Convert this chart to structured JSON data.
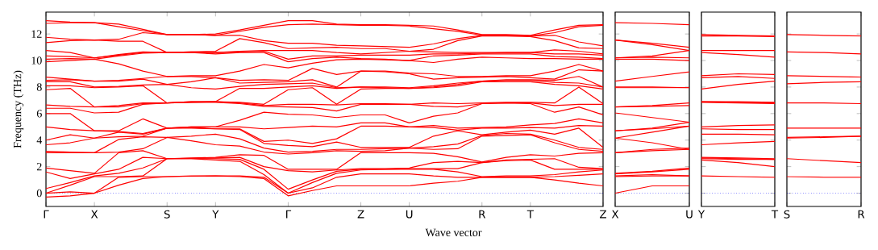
{
  "chart_data": [
    {
      "type": "line",
      "xlabel": "Wave vector",
      "ylabel": "Frequency (THz)",
      "ylim": [
        -1,
        13.65
      ],
      "marker": "none",
      "line_style": "solid",
      "categories": [
        "Γ",
        null,
        "X",
        null,
        null,
        "S",
        null,
        "Y",
        null,
        null,
        "Γ",
        null,
        null,
        "Z",
        null,
        "U",
        null,
        null,
        "R",
        null,
        "T",
        null,
        null,
        "Z"
      ],
      "yticks": [
        0,
        2,
        4,
        6,
        8,
        10,
        12
      ],
      "ref_lines": [
        {
          "axis": "y",
          "value": 0,
          "color": "#0000ff",
          "line_style": "dotted"
        }
      ],
      "series": [
        {
          "color": "#ff0000",
          "values": [
            -0.3,
            -0.2,
            0,
            0.6,
            1.1,
            1.25,
            1.28,
            1.3,
            1.25,
            1.1,
            -0.2,
            0.2,
            0.55,
            0.55,
            0.55,
            0.55,
            0.75,
            0.9,
            1.2,
            1.2,
            1.2,
            1.0,
            0.75,
            0.55
          ]
        },
        {
          "color": "#ff0000",
          "values": [
            0,
            0.1,
            0,
            1.2,
            1.25,
            1.25,
            1.3,
            1.3,
            1.3,
            1.2,
            0,
            0.4,
            1.2,
            1.45,
            1.45,
            1.45,
            1.3,
            1.2,
            1.2,
            1.2,
            1.2,
            1.25,
            1.35,
            1.45
          ]
        },
        {
          "color": "#ff0000",
          "values": [
            0,
            0.6,
            1.25,
            1.25,
            1.3,
            2.6,
            2.6,
            2.5,
            2.4,
            1.4,
            0,
            0.8,
            1.5,
            1.75,
            1.8,
            1.8,
            1.8,
            1.6,
            1.25,
            1.3,
            1.3,
            1.4,
            1.6,
            1.75
          ]
        },
        {
          "color": "#ff0000",
          "values": [
            0.35,
            0.8,
            1.3,
            1.5,
            1.9,
            2.6,
            2.6,
            2.6,
            2.55,
            1.8,
            0.3,
            1.0,
            1.65,
            1.8,
            1.8,
            1.85,
            1.85,
            1.85,
            2.3,
            2.45,
            2.5,
            1.8,
            1.8,
            1.8
          ]
        },
        {
          "color": "#ff0000",
          "values": [
            1.6,
            1.1,
            1.45,
            1.8,
            2.7,
            2.6,
            2.62,
            2.65,
            2.7,
            2.0,
            1.7,
            1.6,
            1.75,
            1.85,
            1.85,
            1.9,
            2.3,
            2.4,
            2.3,
            2.5,
            2.55,
            2.6,
            1.95,
            1.85
          ]
        },
        {
          "color": "#ff0000",
          "values": [
            1.9,
            1.7,
            1.5,
            3.05,
            3.2,
            2.6,
            2.65,
            2.7,
            2.9,
            2.85,
            1.8,
            1.8,
            1.8,
            3.05,
            3.05,
            3.05,
            3.0,
            2.75,
            2.35,
            2.7,
            2.9,
            2.8,
            3.0,
            3.05
          ]
        },
        {
          "color": "#ff0000",
          "values": [
            3.05,
            3.05,
            3.05,
            3.1,
            3.35,
            4.2,
            3.95,
            3.65,
            3.55,
            3.1,
            2.95,
            3.05,
            3.2,
            3.15,
            3.2,
            3.4,
            3.3,
            3.35,
            4.3,
            4.35,
            4.4,
            3.8,
            3.3,
            3.15
          ]
        },
        {
          "color": "#ff0000",
          "values": [
            3.15,
            3.1,
            3.05,
            4.05,
            4.25,
            4.2,
            4.3,
            4.45,
            4.1,
            3.4,
            3.1,
            3.15,
            3.3,
            3.3,
            3.35,
            3.4,
            3.5,
            3.7,
            4.35,
            4.5,
            4.45,
            4.0,
            3.45,
            3.3
          ]
        },
        {
          "color": "#ff0000",
          "values": [
            3.65,
            3.8,
            4.15,
            4.25,
            4.3,
            4.9,
            4.9,
            4.85,
            4.8,
            3.75,
            3.6,
            3.5,
            3.85,
            3.45,
            3.45,
            3.45,
            4.3,
            4.7,
            4.4,
            4.6,
            4.75,
            4.45,
            4.9,
            3.45
          ]
        },
        {
          "color": "#ff0000",
          "values": [
            4.0,
            4.4,
            4.15,
            4.6,
            4.45,
            4.9,
            4.95,
            4.85,
            4.85,
            3.9,
            4.0,
            3.75,
            4.1,
            5.05,
            5.05,
            5.0,
            4.95,
            4.75,
            4.9,
            4.9,
            4.95,
            4.9,
            5.1,
            5.05
          ]
        },
        {
          "color": "#ff0000",
          "values": [
            5.0,
            4.8,
            4.7,
            4.65,
            4.5,
            4.9,
            5.0,
            5.0,
            5.0,
            4.85,
            4.95,
            5.05,
            5.0,
            5.3,
            5.3,
            5.0,
            5.1,
            4.9,
            4.95,
            5.0,
            5.15,
            5.25,
            5.6,
            5.3
          ]
        },
        {
          "color": "#ff0000",
          "values": [
            6.0,
            6.0,
            4.7,
            4.7,
            5.6,
            4.9,
            5.0,
            5.0,
            5.5,
            6.1,
            5.95,
            5.9,
            5.7,
            5.9,
            5.9,
            5.3,
            5.8,
            6.05,
            6.75,
            6.8,
            6.75,
            6.1,
            6.5,
            5.9
          ]
        },
        {
          "color": "#ff0000",
          "values": [
            6.4,
            6.4,
            6.05,
            6.1,
            6.7,
            6.8,
            6.85,
            6.85,
            6.75,
            6.55,
            6.5,
            6.45,
            6.2,
            6.7,
            6.7,
            6.7,
            6.55,
            6.5,
            6.75,
            6.8,
            6.8,
            6.6,
            6.7,
            6.7
          ]
        },
        {
          "color": "#ff0000",
          "values": [
            6.65,
            6.55,
            6.5,
            6.5,
            6.75,
            6.8,
            6.85,
            6.9,
            6.8,
            6.6,
            6.7,
            6.7,
            6.65,
            6.75,
            6.75,
            6.7,
            6.8,
            6.75,
            6.8,
            6.85,
            6.85,
            6.8,
            8.0,
            6.75
          ]
        },
        {
          "color": "#ff0000",
          "values": [
            7.8,
            7.9,
            6.5,
            6.6,
            6.8,
            6.8,
            6.9,
            6.9,
            6.85,
            6.7,
            7.8,
            7.95,
            6.7,
            7.85,
            7.9,
            7.9,
            7.95,
            8.1,
            8.4,
            8.4,
            8.4,
            8.2,
            8.1,
            7.85
          ]
        },
        {
          "color": "#ff0000",
          "values": [
            8.1,
            8.1,
            7.95,
            8.0,
            8.1,
            6.8,
            6.9,
            6.9,
            7.9,
            7.9,
            8.0,
            8.1,
            7.9,
            8.0,
            7.95,
            7.9,
            8.0,
            8.2,
            8.45,
            8.5,
            8.5,
            8.35,
            8.3,
            8.0
          ]
        },
        {
          "color": "#ff0000",
          "values": [
            8.4,
            8.4,
            8.0,
            8.05,
            8.15,
            8.2,
            7.95,
            7.85,
            8.05,
            8.2,
            8.25,
            8.3,
            7.95,
            8.0,
            8.0,
            7.95,
            8.1,
            8.3,
            8.45,
            8.55,
            8.55,
            8.5,
            8.8,
            8.0
          ]
        },
        {
          "color": "#ff0000",
          "values": [
            8.5,
            8.55,
            8.45,
            8.45,
            8.6,
            8.2,
            8.4,
            8.7,
            8.3,
            8.35,
            8.4,
            8.55,
            8.0,
            9.2,
            9.15,
            9.0,
            8.6,
            8.7,
            8.75,
            8.8,
            8.7,
            8.6,
            9.3,
            9.2
          ]
        },
        {
          "color": "#ff0000",
          "values": [
            8.75,
            8.6,
            8.45,
            8.5,
            8.65,
            8.8,
            8.8,
            8.7,
            8.5,
            8.55,
            8.5,
            9.4,
            8.95,
            9.2,
            9.2,
            9.05,
            9.0,
            8.8,
            8.8,
            8.85,
            8.85,
            9.2,
            9.7,
            9.2
          ]
        },
        {
          "color": "#ff0000",
          "values": [
            9.9,
            10.0,
            10.1,
            9.75,
            9.2,
            8.8,
            8.85,
            8.85,
            9.2,
            9.7,
            9.45,
            9.8,
            10.05,
            10.1,
            10.05,
            10.0,
            9.85,
            10.1,
            10.25,
            10.2,
            10.15,
            10.15,
            10.1,
            10.1
          ]
        },
        {
          "color": "#ff0000",
          "values": [
            10.1,
            10.15,
            10.1,
            10.35,
            10.55,
            10.6,
            10.6,
            10.5,
            10.6,
            10.6,
            9.9,
            10.15,
            10.25,
            10.15,
            10.1,
            10.0,
            10.35,
            10.4,
            10.5,
            10.5,
            10.5,
            10.3,
            10.25,
            10.15
          ]
        },
        {
          "color": "#ff0000",
          "values": [
            10.35,
            10.3,
            10.2,
            10.4,
            10.6,
            10.6,
            10.6,
            10.6,
            10.65,
            10.7,
            10.1,
            10.35,
            10.35,
            10.4,
            10.4,
            10.4,
            10.5,
            10.5,
            10.55,
            10.6,
            10.6,
            10.5,
            10.5,
            10.4
          ]
        },
        {
          "color": "#ff0000",
          "values": [
            10.75,
            10.6,
            10.2,
            10.45,
            10.65,
            10.6,
            10.65,
            10.6,
            10.7,
            10.75,
            10.75,
            10.75,
            10.6,
            10.5,
            10.6,
            10.7,
            10.65,
            10.6,
            10.6,
            10.6,
            10.6,
            10.8,
            10.7,
            10.5
          ]
        },
        {
          "color": "#ff0000",
          "values": [
            11.35,
            11.5,
            11.55,
            11.45,
            11.45,
            10.6,
            10.65,
            10.7,
            11.65,
            11.35,
            10.9,
            10.95,
            11.0,
            10.9,
            10.9,
            10.7,
            10.85,
            11.5,
            11.85,
            11.85,
            11.8,
            11.5,
            10.95,
            10.9
          ]
        },
        {
          "color": "#ff0000",
          "values": [
            11.75,
            11.6,
            11.55,
            11.6,
            12.1,
            11.95,
            11.95,
            11.9,
            11.9,
            11.5,
            11.3,
            11.3,
            11.15,
            11.1,
            11.05,
            11.0,
            11.25,
            11.65,
            11.9,
            11.9,
            11.85,
            11.9,
            11.4,
            11.1
          ]
        },
        {
          "color": "#ff0000",
          "values": [
            12.8,
            12.85,
            12.85,
            12.55,
            12.25,
            11.95,
            11.95,
            11.9,
            12.2,
            12.5,
            12.7,
            12.75,
            12.7,
            12.65,
            12.65,
            12.6,
            12.4,
            12.2,
            11.9,
            11.9,
            11.85,
            12.1,
            12.55,
            12.65
          ]
        },
        {
          "color": "#ff0000",
          "values": [
            13.0,
            12.9,
            12.85,
            12.75,
            12.35,
            11.95,
            11.95,
            12.0,
            12.3,
            12.65,
            13.0,
            13.0,
            12.75,
            12.7,
            12.7,
            12.65,
            12.6,
            12.3,
            11.95,
            11.95,
            11.9,
            12.3,
            12.65,
            12.7
          ]
        }
      ]
    },
    {
      "type": "line",
      "ylim": [
        -1,
        13.65
      ],
      "marker": "none",
      "line_style": "solid",
      "tick_labels": "x",
      "categories": [
        "X",
        null,
        "U"
      ],
      "yticks": [
        0,
        2,
        4,
        6,
        8,
        10,
        12
      ],
      "ref_lines": [
        {
          "axis": "y",
          "value": 0,
          "color": "#0000ff",
          "line_style": "dotted"
        }
      ],
      "series": [
        {
          "color": "#ff0000",
          "values": [
            0,
            0.55,
            0.55
          ]
        },
        {
          "color": "#ff0000",
          "values": [
            1.25,
            1.3,
            1.3
          ]
        },
        {
          "color": "#ff0000",
          "values": [
            1.3,
            1.4,
            1.3
          ]
        },
        {
          "color": "#ff0000",
          "values": [
            1.45,
            1.6,
            1.8
          ]
        },
        {
          "color": "#ff0000",
          "values": [
            1.5,
            1.65,
            1.9
          ]
        },
        {
          "color": "#ff0000",
          "values": [
            3.05,
            3.2,
            3.3
          ]
        },
        {
          "color": "#ff0000",
          "values": [
            3.05,
            3.3,
            3.4
          ]
        },
        {
          "color": "#ff0000",
          "values": [
            4.15,
            3.8,
            3.3
          ]
        },
        {
          "color": "#ff0000",
          "values": [
            4.15,
            4.6,
            5.05
          ]
        },
        {
          "color": "#ff0000",
          "values": [
            4.7,
            4.85,
            5.05
          ]
        },
        {
          "color": "#ff0000",
          "values": [
            4.7,
            4.9,
            5.35
          ]
        },
        {
          "color": "#ff0000",
          "values": [
            6.05,
            5.7,
            5.35
          ]
        },
        {
          "color": "#ff0000",
          "values": [
            6.5,
            6.55,
            6.6
          ]
        },
        {
          "color": "#ff0000",
          "values": [
            6.5,
            6.6,
            6.8
          ]
        },
        {
          "color": "#ff0000",
          "values": [
            7.95,
            7.95,
            7.95
          ]
        },
        {
          "color": "#ff0000",
          "values": [
            8.0,
            8.0,
            7.95
          ]
        },
        {
          "color": "#ff0000",
          "values": [
            8.45,
            8.8,
            9.15
          ]
        },
        {
          "color": "#ff0000",
          "values": [
            10.1,
            10.1,
            10.0
          ]
        },
        {
          "color": "#ff0000",
          "values": [
            10.2,
            10.25,
            10.2
          ]
        },
        {
          "color": "#ff0000",
          "values": [
            10.2,
            10.35,
            10.75
          ]
        },
        {
          "color": "#ff0000",
          "values": [
            11.55,
            11.2,
            10.75
          ]
        },
        {
          "color": "#ff0000",
          "values": [
            11.55,
            11.3,
            11.0
          ]
        },
        {
          "color": "#ff0000",
          "values": [
            12.85,
            12.8,
            12.7
          ]
        }
      ]
    },
    {
      "type": "line",
      "ylim": [
        -1,
        13.65
      ],
      "marker": "none",
      "line_style": "solid",
      "tick_labels": "x",
      "categories": [
        "Y",
        null,
        "T"
      ],
      "yticks": [
        0,
        2,
        4,
        6,
        8,
        10,
        12
      ],
      "ref_lines": [
        {
          "axis": "y",
          "value": 0,
          "color": "#0000ff",
          "line_style": "dotted"
        }
      ],
      "series": [
        {
          "color": "#ff0000",
          "values": [
            1.3,
            1.25,
            1.2
          ]
        },
        {
          "color": "#ff0000",
          "values": [
            2.5,
            2.3,
            2.0
          ]
        },
        {
          "color": "#ff0000",
          "values": [
            2.6,
            2.55,
            2.55
          ]
        },
        {
          "color": "#ff0000",
          "values": [
            2.65,
            2.6,
            2.55
          ]
        },
        {
          "color": "#ff0000",
          "values": [
            2.7,
            2.65,
            2.6
          ]
        },
        {
          "color": "#ff0000",
          "values": [
            3.65,
            3.8,
            3.9
          ]
        },
        {
          "color": "#ff0000",
          "values": [
            4.45,
            4.45,
            4.4
          ]
        },
        {
          "color": "#ff0000",
          "values": [
            4.85,
            4.8,
            4.8
          ]
        },
        {
          "color": "#ff0000",
          "values": [
            5.0,
            5.1,
            5.15
          ]
        },
        {
          "color": "#ff0000",
          "values": [
            6.85,
            6.8,
            6.75
          ]
        },
        {
          "color": "#ff0000",
          "values": [
            6.9,
            6.85,
            6.8
          ]
        },
        {
          "color": "#ff0000",
          "values": [
            6.9,
            6.9,
            6.85
          ]
        },
        {
          "color": "#ff0000",
          "values": [
            7.85,
            8.2,
            8.45
          ]
        },
        {
          "color": "#ff0000",
          "values": [
            8.7,
            8.8,
            8.65
          ]
        },
        {
          "color": "#ff0000",
          "values": [
            8.85,
            9.0,
            8.95
          ]
        },
        {
          "color": "#ff0000",
          "values": [
            10.6,
            10.45,
            10.25
          ]
        },
        {
          "color": "#ff0000",
          "values": [
            10.75,
            10.75,
            10.75
          ]
        },
        {
          "color": "#ff0000",
          "values": [
            11.85,
            11.85,
            11.8
          ]
        },
        {
          "color": "#ff0000",
          "values": [
            11.95,
            11.9,
            11.85
          ]
        }
      ]
    },
    {
      "type": "line",
      "ylim": [
        -1,
        13.65
      ],
      "marker": "none",
      "line_style": "solid",
      "tick_labels": "x",
      "categories": [
        "S",
        null,
        "R"
      ],
      "yticks": [
        0,
        2,
        4,
        6,
        8,
        10,
        12
      ],
      "ref_lines": [
        {
          "axis": "y",
          "value": 0,
          "color": "#0000ff",
          "line_style": "dotted"
        }
      ],
      "series": [
        {
          "color": "#ff0000",
          "values": [
            1.25,
            1.2,
            1.2
          ]
        },
        {
          "color": "#ff0000",
          "values": [
            2.6,
            2.45,
            2.3
          ]
        },
        {
          "color": "#ff0000",
          "values": [
            4.15,
            4.2,
            4.3
          ]
        },
        {
          "color": "#ff0000",
          "values": [
            4.2,
            4.25,
            4.3
          ]
        },
        {
          "color": "#ff0000",
          "values": [
            4.9,
            4.9,
            4.9
          ]
        },
        {
          "color": "#ff0000",
          "values": [
            6.8,
            6.8,
            6.75
          ]
        },
        {
          "color": "#ff0000",
          "values": [
            8.25,
            8.35,
            8.4
          ]
        },
        {
          "color": "#ff0000",
          "values": [
            8.85,
            8.8,
            8.75
          ]
        },
        {
          "color": "#ff0000",
          "values": [
            10.65,
            10.6,
            10.5
          ]
        },
        {
          "color": "#ff0000",
          "values": [
            11.95,
            11.9,
            11.85
          ]
        }
      ]
    }
  ]
}
